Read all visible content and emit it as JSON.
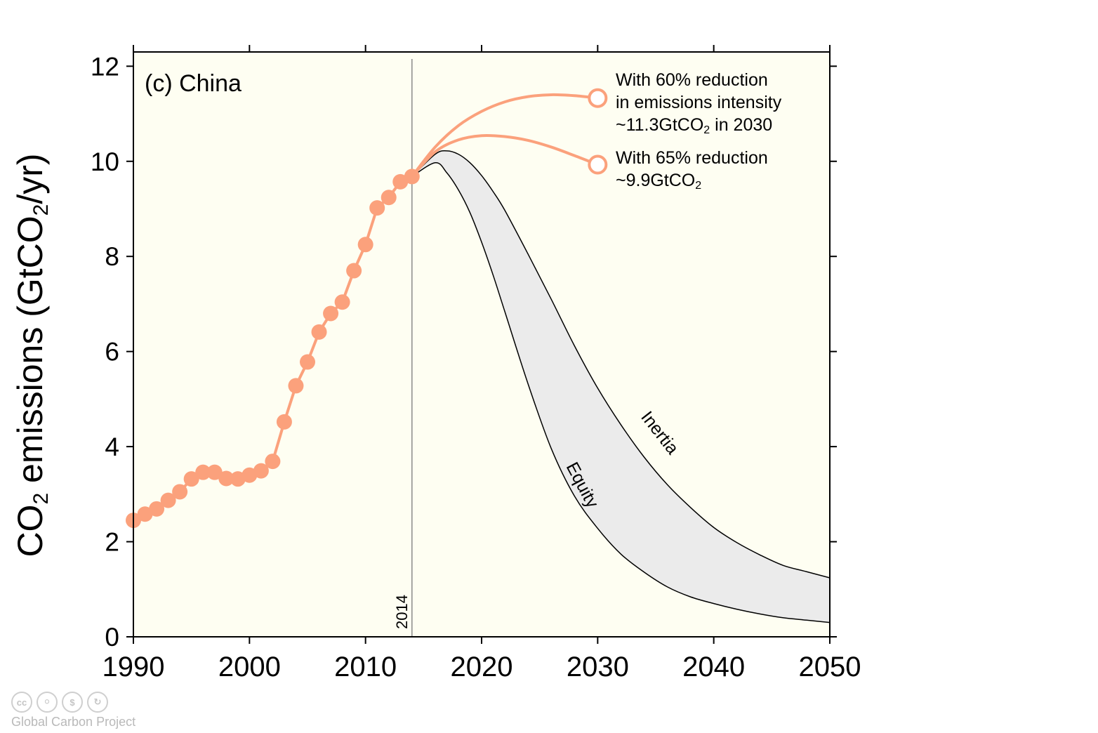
{
  "chart_data": {
    "type": "line",
    "panel_label": "(c) China",
    "ylabel_main": "CO",
    "ylabel_sub": "2",
    "ylabel_mid": " emissions (GtCO",
    "ylabel_sub2": "2",
    "ylabel_end": "/yr)",
    "xlim": [
      1990,
      2050
    ],
    "ylim": [
      0,
      12.3
    ],
    "x_ticks": [
      1990,
      2000,
      2010,
      2020,
      2030,
      2040,
      2050
    ],
    "y_ticks": [
      0,
      2,
      4,
      6,
      8,
      10,
      12
    ],
    "grid": false,
    "background_split_year": 2014,
    "vline": {
      "x": 2014,
      "label": "2014"
    },
    "historical": {
      "x": [
        1990,
        1991,
        1992,
        1993,
        1994,
        1995,
        1996,
        1997,
        1998,
        1999,
        2000,
        2001,
        2002,
        2003,
        2004,
        2005,
        2006,
        2007,
        2008,
        2009,
        2010,
        2011,
        2012,
        2013,
        2014
      ],
      "y": [
        2.45,
        2.58,
        2.69,
        2.87,
        3.05,
        3.32,
        3.46,
        3.46,
        3.33,
        3.32,
        3.4,
        3.49,
        3.69,
        4.52,
        5.28,
        5.78,
        6.41,
        6.8,
        7.04,
        7.7,
        8.25,
        9.02,
        9.24,
        9.57,
        9.68
      ]
    },
    "projection_60": {
      "x": [
        2014,
        2016,
        2018,
        2020,
        2022,
        2024,
        2026,
        2028,
        2030
      ],
      "y": [
        9.68,
        10.3,
        10.75,
        11.05,
        11.25,
        11.36,
        11.4,
        11.38,
        11.33
      ]
    },
    "projection_65": {
      "x": [
        2014,
        2016,
        2018,
        2020,
        2022,
        2024,
        2026,
        2028,
        2030
      ],
      "y": [
        9.68,
        10.2,
        10.45,
        10.54,
        10.52,
        10.44,
        10.3,
        10.12,
        9.93
      ]
    },
    "inertia": {
      "name": "Inertia",
      "x": [
        2014,
        2016,
        2017,
        2018,
        2019,
        2020,
        2021,
        2022,
        2024,
        2026,
        2028,
        2030,
        2032,
        2034,
        2036,
        2038,
        2040,
        2042,
        2044,
        2046,
        2048,
        2050
      ],
      "y": [
        9.68,
        10.15,
        10.22,
        10.15,
        9.97,
        9.7,
        9.36,
        8.97,
        8.05,
        7.1,
        6.12,
        5.23,
        4.46,
        3.78,
        3.2,
        2.72,
        2.3,
        1.98,
        1.72,
        1.5,
        1.37,
        1.24
      ]
    },
    "equity": {
      "name": "Equity",
      "x": [
        2014,
        2016,
        2017,
        2018,
        2019,
        2020,
        2021,
        2022,
        2024,
        2026,
        2028,
        2030,
        2032,
        2034,
        2036,
        2038,
        2040,
        2042,
        2044,
        2046,
        2048,
        2050
      ],
      "y": [
        9.68,
        9.97,
        9.76,
        9.4,
        8.92,
        8.3,
        7.6,
        6.84,
        5.32,
        3.96,
        2.96,
        2.28,
        1.74,
        1.36,
        1.05,
        0.84,
        0.7,
        0.58,
        0.48,
        0.4,
        0.35,
        0.3
      ]
    },
    "annotations": {
      "a60_line1": "With 60% reduction",
      "a60_line2": "in emissions intensity",
      "a60_line3a": "~11.3GtCO",
      "a60_line3sub": "2",
      "a60_line3b": " in 2030",
      "a65_line1": "With 65% reduction",
      "a65_line2a": "~9.9GtCO",
      "a65_line2sub": "2"
    },
    "colors": {
      "history": "#fba17c",
      "band_fill": "#ebebeb",
      "bg_history": "#fefef2",
      "bg_projection": "#fefef2",
      "vline": "#8a8a8a"
    }
  },
  "footer": {
    "icons": [
      "cc-icon",
      "by-icon",
      "nc-icon",
      "sa-icon"
    ],
    "icon_labels": [
      "cc",
      "",
      "",
      ""
    ],
    "credit": "Global Carbon Project"
  }
}
